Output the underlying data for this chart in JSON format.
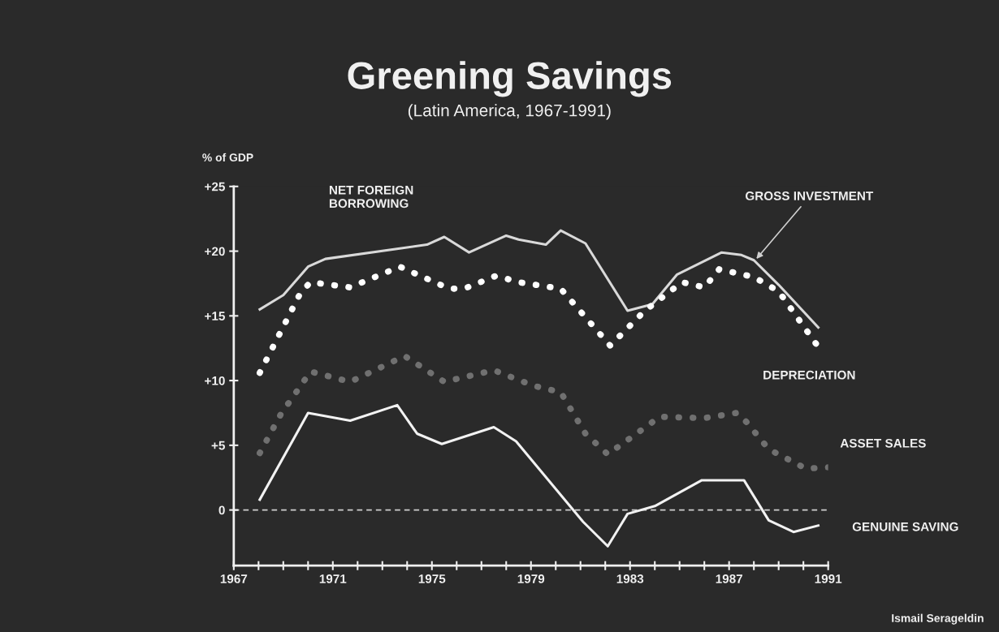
{
  "chart_data": {
    "type": "line",
    "title": "Greening Savings",
    "subtitle": "(Latin America, 1967-1991)",
    "ylabel": "% of GDP",
    "xlim": [
      1967,
      1991
    ],
    "ylim": [
      -4.3,
      25
    ],
    "xticks": [
      1967,
      {
        "value": 1968,
        "label": null
      },
      {
        "value": 1969,
        "label": null
      },
      {
        "value": 1970,
        "label": null
      },
      1971,
      {
        "value": 1972,
        "label": null
      },
      {
        "value": 1973,
        "label": null
      },
      {
        "value": 1974,
        "label": null
      },
      1975,
      {
        "value": 1976,
        "label": null
      },
      {
        "value": 1977,
        "label": null
      },
      {
        "value": 1978,
        "label": null
      },
      1979,
      {
        "value": 1980,
        "label": null
      },
      {
        "value": 1981,
        "label": null
      },
      {
        "value": 1982,
        "label": null
      },
      1983,
      {
        "value": 1984,
        "label": null
      },
      {
        "value": 1985,
        "label": null
      },
      {
        "value": 1986,
        "label": null
      },
      1987,
      {
        "value": 1988,
        "label": null
      },
      {
        "value": 1989,
        "label": null
      },
      {
        "value": 1990,
        "label": null
      },
      1991
    ],
    "yticks": [
      0,
      {
        "value": 5,
        "label": "+5"
      },
      {
        "value": 10,
        "label": "+10"
      },
      {
        "value": 15,
        "label": "+15"
      },
      {
        "value": 20,
        "label": "+20"
      },
      {
        "value": 25,
        "label": "+25"
      }
    ],
    "grid": false,
    "marker": "none",
    "series": [
      {
        "color": "#d9d9d9",
        "line_style": "solid",
        "x": [
          1968.05,
          1969.0,
          1970.0,
          1970.7,
          1974.8,
          1975.5,
          1976.5,
          1978.0,
          1978.5,
          1979.6,
          1980.2,
          1981.2,
          1982.9,
          1983.9,
          1984.9,
          1986.7,
          1987.5,
          1988.0,
          1989.0,
          1990.6
        ],
        "values": [
          15.5,
          16.6,
          18.8,
          19.4,
          20.5,
          21.1,
          19.9,
          21.2,
          20.9,
          20.5,
          21.6,
          20.6,
          15.4,
          15.9,
          18.2,
          19.9,
          19.7,
          19.3,
          17.4,
          14.1
        ]
      },
      {
        "color": "#ffffff",
        "line_style": "dotted",
        "x": [
          1968.05,
          1969.7,
          1970.1,
          1971.7,
          1973.7,
          1975.7,
          1976.3,
          1977.6,
          1978.5,
          1980.2,
          1982.2,
          1983.6,
          1985.1,
          1986.0,
          1986.6,
          1988.0,
          1989.0,
          1990.6
        ],
        "values": [
          10.6,
          16.8,
          17.6,
          17.2,
          18.8,
          17.1,
          17.1,
          18.1,
          17.6,
          17.1,
          12.7,
          15.4,
          17.6,
          17.2,
          18.6,
          18.0,
          16.9,
          12.6
        ]
      },
      {
        "color": "#707070",
        "line_style": "dotted",
        "x": [
          1968.05,
          1968.9,
          1970.1,
          1971.7,
          1973.9,
          1975.5,
          1977.5,
          1979.1,
          1980.2,
          1981.2,
          1982.1,
          1984.2,
          1986.0,
          1987.3,
          1987.7,
          1988.6,
          1990.1,
          1991.0
        ],
        "values": [
          4.4,
          7.4,
          10.7,
          9.9,
          11.9,
          9.9,
          10.8,
          9.6,
          9.1,
          5.9,
          4.3,
          7.2,
          7.1,
          7.5,
          6.8,
          4.7,
          3.2,
          3.3
        ]
      },
      {
        "color": "#f2f2f2",
        "line_style": "solid",
        "x": [
          1968.05,
          1970.0,
          1971.7,
          1973.6,
          1974.4,
          1975.4,
          1977.5,
          1978.4,
          1981.1,
          1982.1,
          1982.9,
          1984.0,
          1985.9,
          1987.6,
          1988.6,
          1989.6,
          1990.6
        ],
        "values": [
          0.8,
          7.5,
          6.9,
          8.1,
          5.9,
          5.1,
          6.4,
          5.3,
          -0.9,
          -2.8,
          -0.3,
          0.3,
          2.3,
          2.3,
          -0.8,
          -1.7,
          -1.2
        ]
      }
    ],
    "ref_lines": [
      {
        "axis": "y",
        "value": 0,
        "color": "#cfcfcf",
        "line_style": "dashed"
      }
    ],
    "annotations": [
      "NET FOREIGN\nBORROWING",
      {
        "text": "GROSS INVESTMENT",
        "x": 1988.1,
        "y": 19.4
      },
      "DEPRECIATION",
      "ASSET SALES",
      {
        "text": "GENUINE SAVING",
        "x": 1990.6,
        "y": -1.2
      },
      "Ismail Serageldin"
    ]
  }
}
